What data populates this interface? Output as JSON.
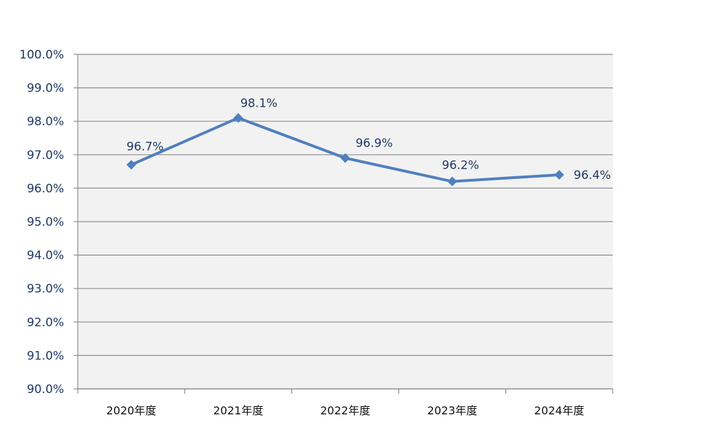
{
  "chart_data": {
    "type": "line",
    "categories": [
      "2020年度",
      "2021年度",
      "2022年度",
      "2023年度",
      "2024年度"
    ],
    "series": [
      {
        "values": [
          96.7,
          98.1,
          96.9,
          96.2,
          96.4
        ],
        "data_labels": [
          "96.7%",
          "98.1%",
          "96.9%",
          "96.2%",
          "96.4%"
        ]
      }
    ],
    "ylim": [
      90.0,
      100.0
    ],
    "ytick_values": [
      90,
      91,
      92,
      93,
      94,
      95,
      96,
      97,
      98,
      99,
      100
    ],
    "ytick_labels": [
      "90.0%",
      "91.0%",
      "92.0%",
      "93.0%",
      "94.0%",
      "95.0%",
      "96.0%",
      "97.0%",
      "98.0%",
      "99.0%",
      "100.0%"
    ],
    "grid": true,
    "colors": {
      "line": "#4f7fbf",
      "plot_background": "#f2f2f2",
      "gridline": "#8c8c8c",
      "text": "#1f3864",
      "axis": "#8c8c8c"
    }
  }
}
